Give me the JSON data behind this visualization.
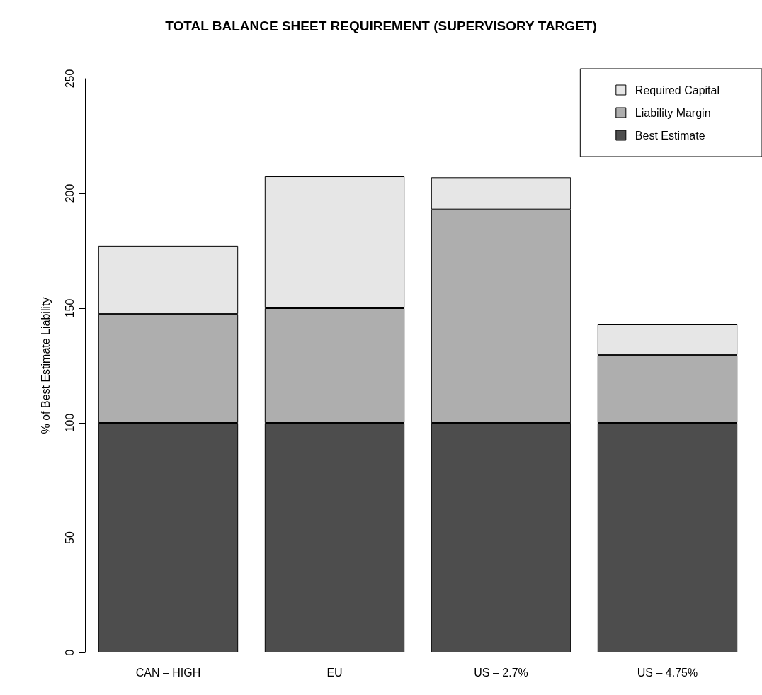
{
  "chart_data": {
    "type": "bar",
    "title": "TOTAL BALANCE SHEET REQUIREMENT (SUPERVISORY TARGET)",
    "ylabel": "% of Best Estimate Liability",
    "categories": [
      "CAN – HIGH",
      "EU",
      "US – 2.7%",
      "US – 4.75%"
    ],
    "stacked": true,
    "series": [
      {
        "name": "Best Estimate",
        "color": "#4d4d4d",
        "values": [
          100,
          100,
          100,
          100
        ]
      },
      {
        "name": "Liability Margin",
        "color": "#aeaeae",
        "values": [
          47.5,
          50,
          93,
          29.6
        ]
      },
      {
        "name": "Required Capital",
        "color": "#e6e6e6",
        "values": [
          29.7,
          57.4,
          14,
          13.3
        ]
      }
    ],
    "ylim": [
      0,
      250
    ],
    "yticks": [
      0,
      50,
      100,
      150,
      200,
      250
    ],
    "grid": false,
    "legend": "top right"
  }
}
